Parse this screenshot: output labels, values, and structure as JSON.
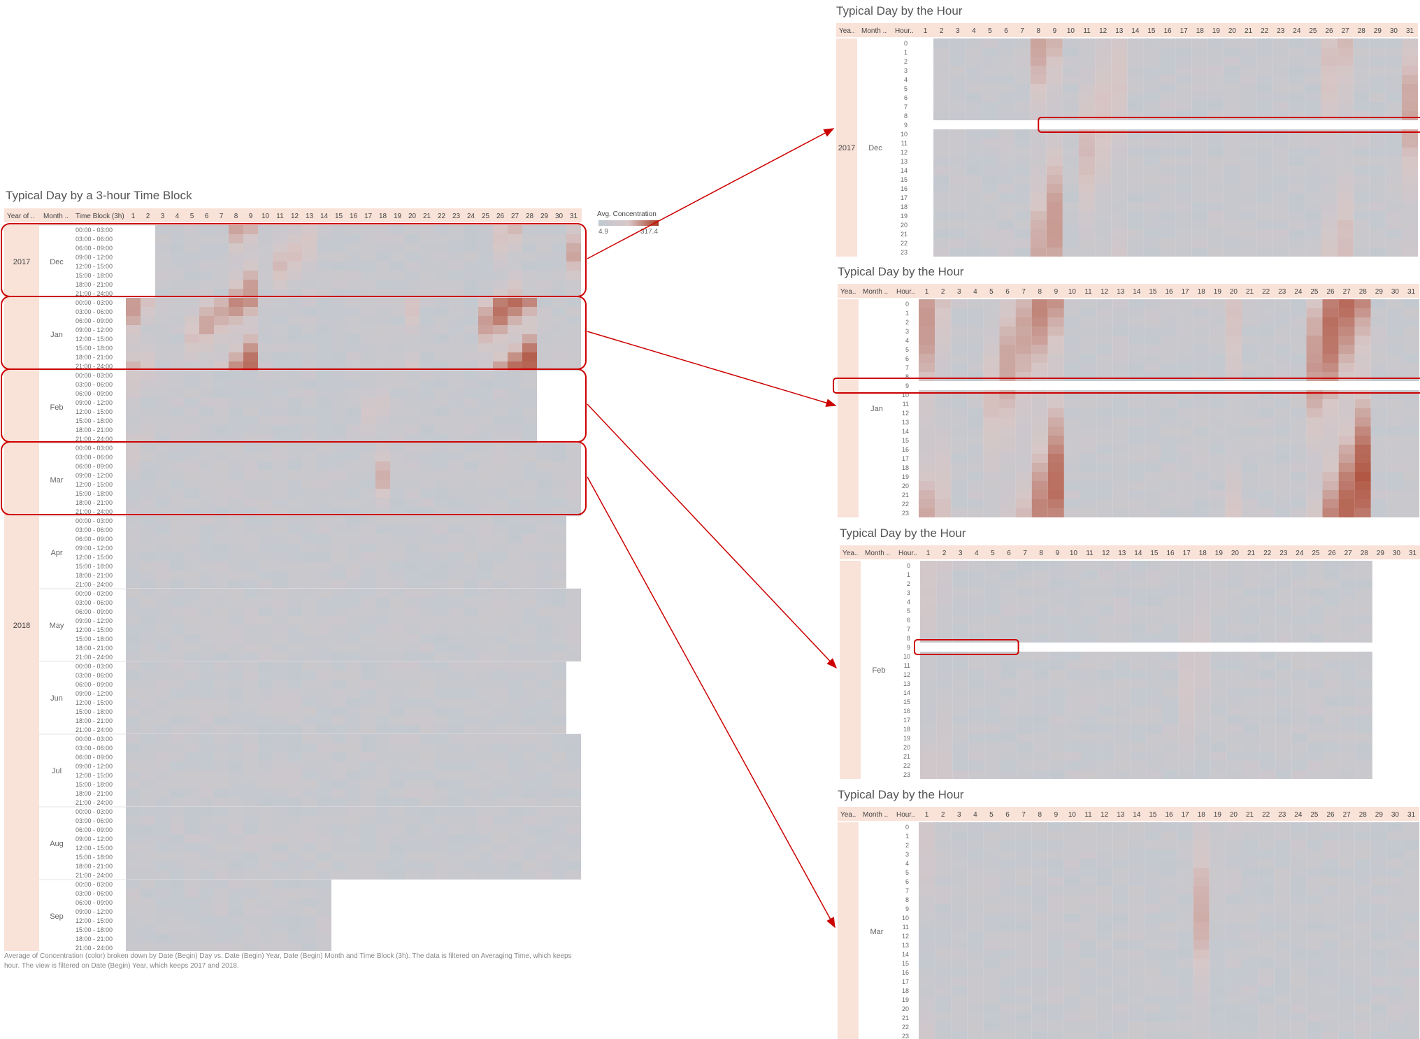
{
  "main": {
    "title": "Typical Day by a 3-hour Time Block",
    "caption": "Average of Concentration (color) broken down by Date (Begin) Day vs. Date (Begin) Year, Date (Begin) Month and Time Block (3h). The data is filtered on Averaging Time, which keeps hour. The view is filtered on Date (Begin) Year, which keeps 2017 and 2018.",
    "headers": [
      "Year of ..",
      "Month ..",
      "Time Block (3h)"
    ]
  },
  "legend": {
    "title": "Avg. Concentration",
    "min": "4.9",
    "max": "317.4"
  },
  "hour_panels": [
    {
      "title": "Typical Day by the Hour",
      "year": "2017",
      "month": "Dec"
    },
    {
      "title": "Typical Day by the Hour",
      "year": "",
      "month": "Jan"
    },
    {
      "title": "Typical Day by the Hour",
      "year": "",
      "month": "Feb"
    },
    {
      "title": "Typical Day by the Hour",
      "year": "",
      "month": "Mar"
    }
  ],
  "hour_headers": [
    "Yea..",
    "Month ..",
    "Hour.."
  ],
  "chart_data": [
    {
      "type": "heatmap",
      "title": "Typical Day by a 3-hour Time Block",
      "x": {
        "label": "Date (Begin) Day",
        "categories": [
          "1",
          "2",
          "3",
          "4",
          "5",
          "6",
          "7",
          "8",
          "9",
          "10",
          "11",
          "12",
          "13",
          "14",
          "15",
          "16",
          "17",
          "18",
          "19",
          "20",
          "21",
          "22",
          "23",
          "24",
          "25",
          "26",
          "27",
          "28",
          "29",
          "30",
          "31"
        ]
      },
      "time_blocks": [
        "00:00 - 03:00",
        "03:00 - 06:00",
        "06:00 - 09:00",
        "09:00 - 12:00",
        "12:00 - 15:00",
        "15:00 - 18:00",
        "18:00 - 21:00",
        "21:00 - 24:00"
      ],
      "years": [
        {
          "year": "2017",
          "months": [
            "Dec"
          ]
        },
        {
          "year": "2018",
          "months": [
            "Jan",
            "Feb",
            "Mar",
            "Apr",
            "May",
            "Jun",
            "Jul",
            "Aug",
            "Sep"
          ]
        }
      ],
      "color_scale": {
        "min": 4.9,
        "max": 317.4,
        "low_color": "#bfc8d1",
        "high_color": "#a83c24"
      },
      "highlighted_months": [
        "Dec",
        "Jan",
        "Feb",
        "Mar"
      ],
      "month_days": {
        "Dec": [
          2,
          31
        ],
        "Jan": [
          1,
          31
        ],
        "Feb": [
          1,
          28
        ],
        "Mar": [
          1,
          31
        ],
        "Apr": [
          1,
          30
        ],
        "May": [
          1,
          31
        ],
        "Jun": [
          1,
          30
        ],
        "Jul": [
          1,
          31
        ],
        "Aug": [
          1,
          31
        ],
        "Sep": [
          1,
          14
        ]
      },
      "hot_days": {
        "Dec": {
          "8": 150,
          "9": 170,
          "11": 120,
          "12": 110,
          "13": 100,
          "26": 110,
          "27": 120,
          "31": 150
        },
        "Jan": {
          "1": 170,
          "2": 110,
          "5": 110,
          "6": 150,
          "7": 150,
          "8": 200,
          "9": 230,
          "20": 110,
          "25": 170,
          "26": 230,
          "27": 240,
          "28": 260
        },
        "Feb": {
          "1": 80,
          "2": 70,
          "17": 80,
          "18": 70
        },
        "Mar": {
          "1": 70,
          "18": 140,
          "19": 40
        }
      },
      "missing_days": {
        "Dec": [
          2
        ],
        "Jan": [],
        "Feb": [
          29,
          30,
          31
        ],
        "Mar": [],
        "Apr": [
          31
        ],
        "Jun": [
          31
        ],
        "Aug": [],
        "Sep": [
          15,
          16,
          17,
          18,
          19,
          20,
          21,
          22,
          23,
          24,
          25,
          26,
          27,
          28,
          29,
          30,
          31
        ]
      }
    },
    {
      "type": "heatmap",
      "title": "Typical Day by the Hour",
      "x": {
        "label": "Date (Begin) Day",
        "categories": [
          "1",
          "2",
          "3",
          "4",
          "5",
          "6",
          "7",
          "8",
          "9",
          "10",
          "11",
          "12",
          "13",
          "14",
          "15",
          "16",
          "17",
          "18",
          "19",
          "20",
          "21",
          "22",
          "23",
          "24",
          "25",
          "26",
          "27",
          "28",
          "29",
          "30",
          "31"
        ]
      },
      "y": {
        "label": "Hour",
        "categories": [
          "0",
          "1",
          "2",
          "3",
          "4",
          "5",
          "6",
          "7",
          "8",
          "9",
          "10",
          "11",
          "12",
          "13",
          "14",
          "15",
          "16",
          "17",
          "18",
          "19",
          "20",
          "21",
          "22",
          "23"
        ]
      },
      "panels": [
        {
          "month": "Dec",
          "year": "2017",
          "missing_hour": 9,
          "days": [
            2,
            31
          ]
        },
        {
          "month": "Jan",
          "year": "2018",
          "missing_hour": 9,
          "days": [
            1,
            31
          ]
        },
        {
          "month": "Feb",
          "year": "2018",
          "missing_hour": 9,
          "days": [
            1,
            28
          ]
        },
        {
          "month": "Mar",
          "year": "2018",
          "missing_hour": null,
          "days": [
            1,
            31
          ]
        }
      ]
    }
  ]
}
